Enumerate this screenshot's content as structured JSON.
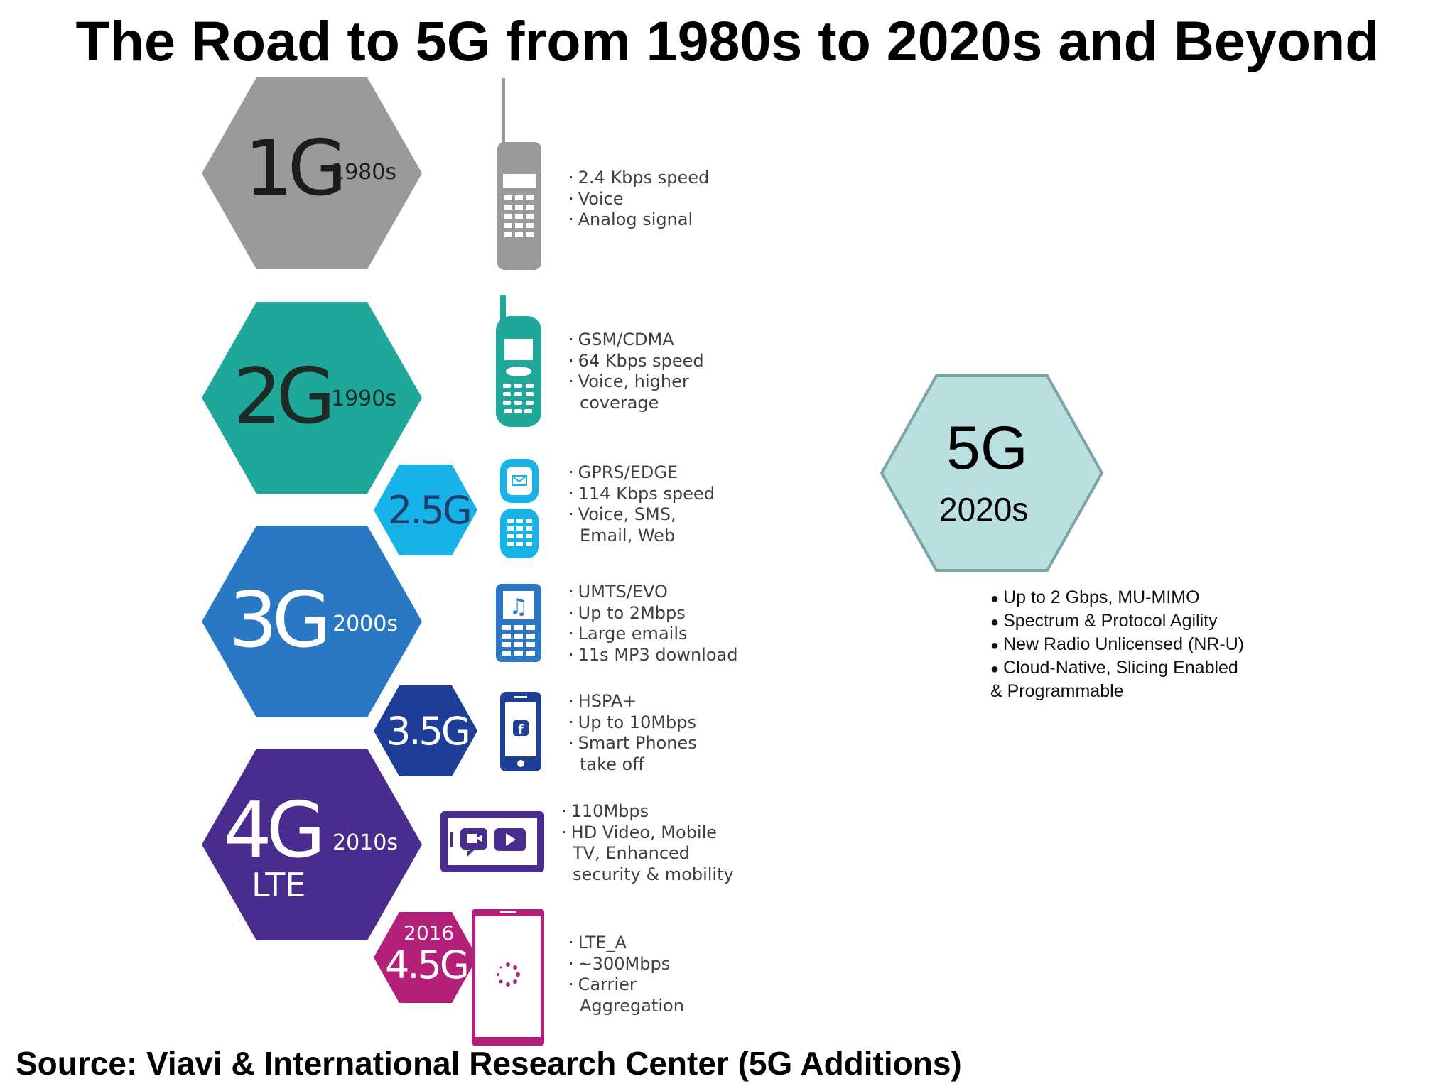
{
  "title": "The Road to 5G from 1980s to 2020s and Beyond",
  "source": "Source: Viavi & International Research Center (5G Additions)",
  "colors": {
    "g1": "#9a9a9b",
    "g2": "#1fa89a",
    "g25": "#16b2e8",
    "g3": "#2a78c4",
    "g35": "#1f3e98",
    "g4": "#4a2c8f",
    "g45": "#b3207a",
    "g5": "#b9dfe0",
    "g5_border": "#7aa4a7"
  },
  "generations": [
    {
      "id": "1g",
      "gen": "1G",
      "year": "1980s",
      "icon": "brick-phone-icon",
      "features": [
        "2.4 Kbps speed",
        "Voice",
        "Analog signal"
      ]
    },
    {
      "id": "2g",
      "gen": "2G",
      "year": "1990s",
      "icon": "candybar-phone-icon",
      "features": [
        "GSM/CDMA",
        "64 Kbps speed",
        "Voice, higher",
        "coverage"
      ]
    },
    {
      "id": "25g",
      "gen": "2.5G",
      "icon": "flip-phone-email-icon",
      "features": [
        "GPRS/EDGE",
        "114 Kbps speed",
        "Voice, SMS,",
        "Email, Web"
      ]
    },
    {
      "id": "3g",
      "gen": "3G",
      "year": "2000s",
      "icon": "music-phone-icon",
      "features": [
        "UMTS/EVO",
        "Up to 2Mbps",
        "Large emails",
        "11s MP3 download"
      ]
    },
    {
      "id": "35g",
      "gen": "3.5G",
      "icon": "smartphone-facebook-icon",
      "features": [
        "HSPA+",
        "Up to 10Mbps",
        "Smart Phones",
        "take off"
      ]
    },
    {
      "id": "4g",
      "gen": "4G",
      "year": "2010s",
      "sub": "LTE",
      "icon": "video-tablet-icon",
      "features": [
        "110Mbps",
        "HD Video, Mobile",
        "TV, Enhanced",
        "security & mobility"
      ]
    },
    {
      "id": "45g",
      "gen": "4.5G",
      "year": "2016",
      "icon": "loading-smartphone-icon",
      "features": [
        "LTE_A",
        "~300Mbps",
        "Carrier",
        "Aggregation"
      ]
    }
  ],
  "g5": {
    "gen": "5G",
    "year": "2020s",
    "features": [
      "Up to 2 Gbps, MU-MIMO",
      "Spectrum & Protocol Agility",
      "New Radio Unlicensed (NR-U)",
      "Cloud-Native, Slicing Enabled",
      "& Programmable"
    ]
  }
}
